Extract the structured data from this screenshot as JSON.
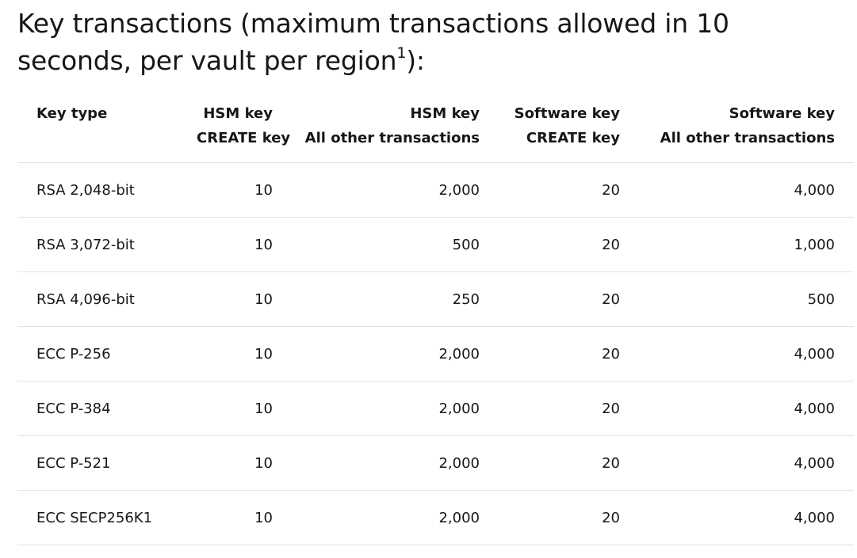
{
  "heading": {
    "text": "Key transactions (maximum transactions allowed in 10 seconds, per vault per region",
    "footnote_marker": "1",
    "suffix": "):"
  },
  "table": {
    "headers": [
      {
        "line1": "Key type",
        "line2": ""
      },
      {
        "line1": "HSM key",
        "line2": "CREATE key"
      },
      {
        "line1": "HSM key",
        "line2": "All other transactions"
      },
      {
        "line1": "Software key",
        "line2": "CREATE key"
      },
      {
        "line1": "Software key",
        "line2": "All other transactions"
      }
    ],
    "rows": [
      [
        "RSA 2,048-bit",
        "10",
        "2,000",
        "20",
        "4,000"
      ],
      [
        "RSA 3,072-bit",
        "10",
        "500",
        "20",
        "1,000"
      ],
      [
        "RSA 4,096-bit",
        "10",
        "250",
        "20",
        "500"
      ],
      [
        "ECC P-256",
        "10",
        "2,000",
        "20",
        "4,000"
      ],
      [
        "ECC P-384",
        "10",
        "2,000",
        "20",
        "4,000"
      ],
      [
        "ECC P-521",
        "10",
        "2,000",
        "20",
        "4,000"
      ],
      [
        "ECC SECP256K1",
        "10",
        "2,000",
        "20",
        "4,000"
      ]
    ]
  }
}
